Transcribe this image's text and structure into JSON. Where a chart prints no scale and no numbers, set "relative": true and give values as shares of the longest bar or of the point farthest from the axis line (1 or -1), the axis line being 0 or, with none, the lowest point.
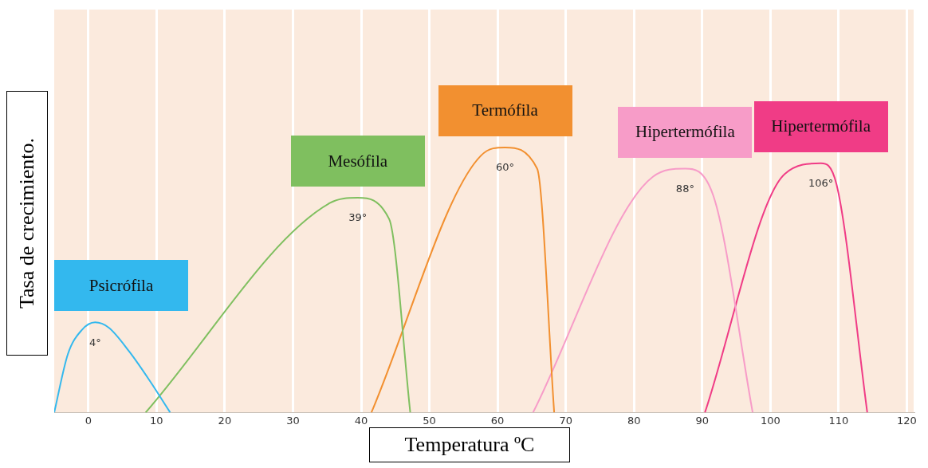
{
  "chart_data": {
    "type": "line",
    "xlabel": "Temperatura ºC",
    "ylabel": "Tasa de crecimiento.",
    "relative": true,
    "xlim": [
      -5,
      121
    ],
    "xticks": [
      0,
      10,
      20,
      30,
      40,
      50,
      60,
      70,
      80,
      90,
      100,
      110,
      120
    ],
    "grid": "x",
    "legend": false,
    "marker": "none",
    "series": [
      {
        "name": "Psicrófila",
        "color": "#33b8ee",
        "x": [
          -5,
          -3,
          -1,
          1,
          3,
          6,
          9,
          12
        ],
        "values": [
          0,
          0.22,
          0.31,
          0.34,
          0.32,
          0.23,
          0.12,
          0
        ]
      },
      {
        "name": "Mesófila",
        "color": "#7fbf5f",
        "x": [
          8.4,
          35.4,
          39.5,
          44.1,
          47.2
        ],
        "values": [
          0,
          0.79,
          0.81,
          0.73,
          0
        ]
      },
      {
        "name": "Termófila",
        "color": "#f29030",
        "x": [
          41.5,
          57.6,
          61.1,
          65.8,
          68.3
        ],
        "values": [
          0,
          0.97,
          1,
          0.92,
          0
        ]
      },
      {
        "name": "Hipertermófila",
        "color": "#f79cc8",
        "x": [
          65.2,
          82.8,
          87.5,
          91.6,
          97.4
        ],
        "values": [
          0,
          0.89,
          0.92,
          0.82,
          0
        ]
      },
      {
        "name": "Hipertermófila",
        "color": "#f03c86",
        "x": [
          90.4,
          102.1,
          107.4,
          109.7,
          114.2
        ],
        "values": [
          0,
          0.9,
          0.94,
          0.86,
          0
        ]
      }
    ],
    "annotations": [
      "4°",
      "39°",
      "60°",
      "88°",
      "106°"
    ]
  }
}
